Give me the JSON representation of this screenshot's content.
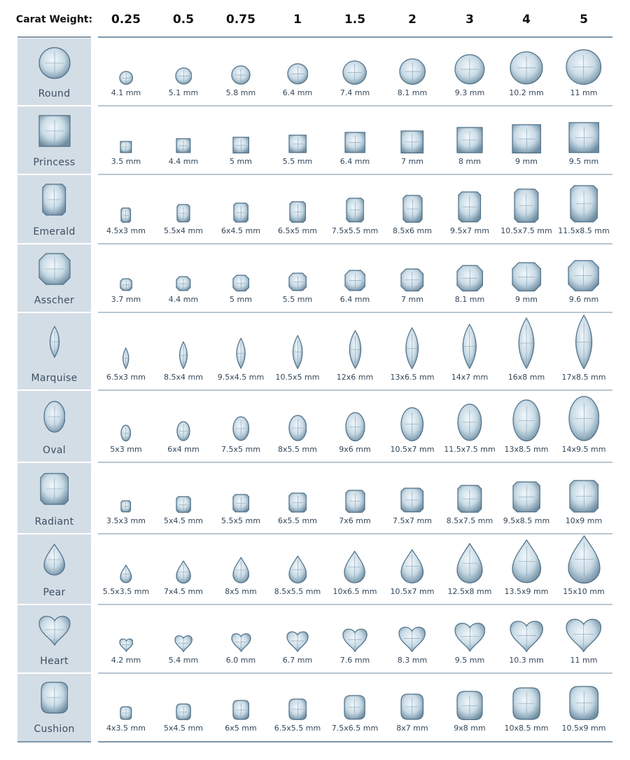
{
  "chart_data": {
    "type": "table",
    "header_label": "Carat Weight:",
    "carats": [
      "0.25",
      "0.5",
      "0.75",
      "1",
      "1.5",
      "2",
      "3",
      "4",
      "5"
    ],
    "colors": {
      "side_bg": "#d3dde6",
      "rule": "#7f96a8",
      "gem_stroke": "#4f6f86",
      "gem_fill": "#c9dbe6",
      "text": "#33475a"
    },
    "rows": [
      {
        "shape": "Round",
        "sizes": [
          "4.1 mm",
          "5.1 mm",
          "5.8 mm",
          "6.4 mm",
          "7.4 mm",
          "8.1 mm",
          "9.3 mm",
          "10.2 mm",
          "11 mm"
        ]
      },
      {
        "shape": "Princess",
        "sizes": [
          "3.5 mm",
          "4.4 mm",
          "5 mm",
          "5.5 mm",
          "6.4 mm",
          "7 mm",
          "8 mm",
          "9 mm",
          "9.5 mm"
        ]
      },
      {
        "shape": "Emerald",
        "sizes": [
          "4.5x3 mm",
          "5.5x4 mm",
          "6x4.5 mm",
          "6.5x5 mm",
          "7.5x5.5 mm",
          "8.5x6 mm",
          "9.5x7 mm",
          "10.5x7.5 mm",
          "11.5x8.5 mm"
        ]
      },
      {
        "shape": "Asscher",
        "sizes": [
          "3.7 mm",
          "4.4 mm",
          "5 mm",
          "5.5 mm",
          "6.4 mm",
          "7 mm",
          "8.1 mm",
          "9 mm",
          "9.6 mm"
        ]
      },
      {
        "shape": "Marquise",
        "sizes": [
          "6.5x3 mm",
          "8.5x4 mm",
          "9.5x4.5 mm",
          "10.5x5 mm",
          "12x6 mm",
          "13x6.5 mm",
          "14x7 mm",
          "16x8 mm",
          "17x8.5 mm"
        ]
      },
      {
        "shape": "Oval",
        "sizes": [
          "5x3 mm",
          "6x4 mm",
          "7.5x5 mm",
          "8x5.5 mm",
          "9x6 mm",
          "10.5x7 mm",
          "11.5x7.5 mm",
          "13x8.5 mm",
          "14x9.5 mm"
        ]
      },
      {
        "shape": "Radiant",
        "sizes": [
          "3.5x3 mm",
          "5x4.5 mm",
          "5.5x5 mm",
          "6x5.5 mm",
          "7x6 mm",
          "7.5x7 mm",
          "8.5x7.5 mm",
          "9.5x8.5 mm",
          "10x9 mm"
        ]
      },
      {
        "shape": "Pear",
        "sizes": [
          "5.5x3.5 mm",
          "7x4.5 mm",
          "8x5 mm",
          "8.5x5.5 mm",
          "10x6.5 mm",
          "10.5x7 mm",
          "12.5x8 mm",
          "13.5x9 mm",
          "15x10 mm"
        ]
      },
      {
        "shape": "Heart",
        "sizes": [
          "4.2 mm",
          "5.4 mm",
          "6.0 mm",
          "6.7 mm",
          "7.6 mm",
          "8.3 mm",
          "9.5 mm",
          "10.3 mm",
          "11 mm"
        ]
      },
      {
        "shape": "Cushion",
        "sizes": [
          "4x3.5 mm",
          "5x4.5 mm",
          "6x5 mm",
          "6.5x5.5 mm",
          "7.5x6.5 mm",
          "8x7 mm",
          "9x8 mm",
          "10x8.5 mm",
          "10.5x9 mm"
        ]
      }
    ]
  }
}
